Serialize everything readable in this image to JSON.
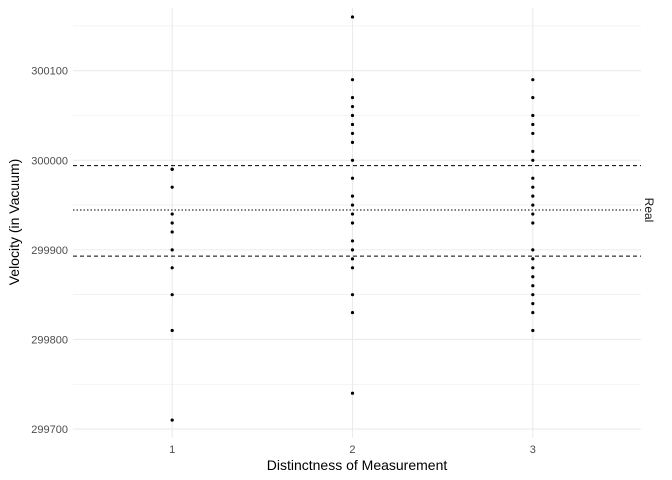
{
  "chart_data": {
    "type": "scatter",
    "title": "",
    "xlabel": "Distinctness of Measurement",
    "ylabel": "Velocity (in Vacuum)",
    "x_ticks": [
      1,
      2,
      3
    ],
    "y_ticks": [
      299700,
      299800,
      299900,
      300000,
      300100
    ],
    "xlim": [
      0.45,
      3.6
    ],
    "ylim": [
      299690,
      300170
    ],
    "grid": true,
    "colors": {
      "points": "#000000",
      "grid": "#ebebeb"
    },
    "points": [
      {
        "x": 1,
        "y": 299710
      },
      {
        "x": 1,
        "y": 299810
      },
      {
        "x": 1,
        "y": 299850
      },
      {
        "x": 1,
        "y": 299880
      },
      {
        "x": 1,
        "y": 299900
      },
      {
        "x": 1,
        "y": 299920
      },
      {
        "x": 1,
        "y": 299930
      },
      {
        "x": 1,
        "y": 299940
      },
      {
        "x": 1,
        "y": 299970
      },
      {
        "x": 1,
        "y": 299990
      },
      {
        "x": 1,
        "y": 299990
      },
      {
        "x": 2,
        "y": 299740
      },
      {
        "x": 2,
        "y": 299830
      },
      {
        "x": 2,
        "y": 299850
      },
      {
        "x": 2,
        "y": 299880
      },
      {
        "x": 2,
        "y": 299890
      },
      {
        "x": 2,
        "y": 299900
      },
      {
        "x": 2,
        "y": 299910
      },
      {
        "x": 2,
        "y": 299930
      },
      {
        "x": 2,
        "y": 299940
      },
      {
        "x": 2,
        "y": 299950
      },
      {
        "x": 2,
        "y": 299960
      },
      {
        "x": 2,
        "y": 299980
      },
      {
        "x": 2,
        "y": 300000
      },
      {
        "x": 2,
        "y": 300020
      },
      {
        "x": 2,
        "y": 300030
      },
      {
        "x": 2,
        "y": 300040
      },
      {
        "x": 2,
        "y": 300050
      },
      {
        "x": 2,
        "y": 300060
      },
      {
        "x": 2,
        "y": 300070
      },
      {
        "x": 2,
        "y": 300090
      },
      {
        "x": 2,
        "y": 300160
      },
      {
        "x": 3,
        "y": 299810
      },
      {
        "x": 3,
        "y": 299830
      },
      {
        "x": 3,
        "y": 299840
      },
      {
        "x": 3,
        "y": 299850
      },
      {
        "x": 3,
        "y": 299860
      },
      {
        "x": 3,
        "y": 299870
      },
      {
        "x": 3,
        "y": 299880
      },
      {
        "x": 3,
        "y": 299890
      },
      {
        "x": 3,
        "y": 299900
      },
      {
        "x": 3,
        "y": 299930
      },
      {
        "x": 3,
        "y": 299940
      },
      {
        "x": 3,
        "y": 299950
      },
      {
        "x": 3,
        "y": 299960
      },
      {
        "x": 3,
        "y": 299970
      },
      {
        "x": 3,
        "y": 299980
      },
      {
        "x": 3,
        "y": 300000
      },
      {
        "x": 3,
        "y": 300010
      },
      {
        "x": 3,
        "y": 300030
      },
      {
        "x": 3,
        "y": 300040
      },
      {
        "x": 3,
        "y": 300050
      },
      {
        "x": 3,
        "y": 300070
      },
      {
        "x": 3,
        "y": 300090
      }
    ],
    "reference_lines": [
      {
        "y": 299994,
        "style": "dashed",
        "label": ""
      },
      {
        "y": 299944.5,
        "style": "dotted",
        "label": "Real"
      },
      {
        "y": 299893,
        "style": "dashed",
        "label": ""
      }
    ]
  }
}
